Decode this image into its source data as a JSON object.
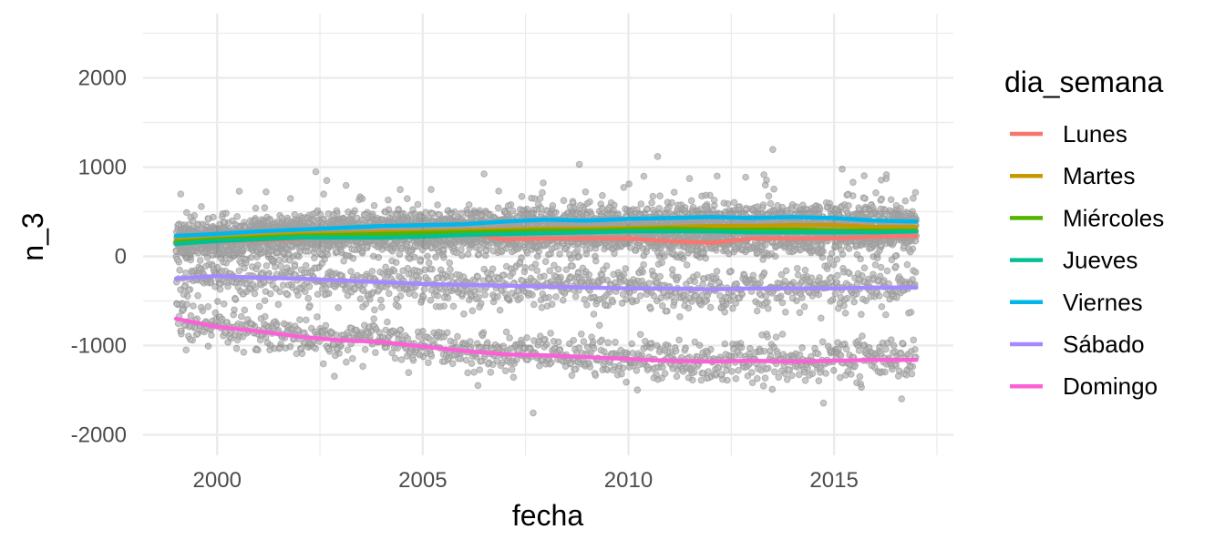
{
  "chart_data": {
    "type": "scatter",
    "xlabel": "fecha",
    "ylabel": "n_3",
    "xlim": [
      1998.2,
      2017.9
    ],
    "ylim": [
      -2230,
      2720
    ],
    "x_ticks": [
      2000,
      2005,
      2010,
      2015
    ],
    "y_ticks": [
      -2000,
      -1000,
      0,
      1000,
      2000
    ],
    "grid": true,
    "legend": {
      "title": "dia_semana",
      "placement": "right",
      "entries": [
        "Lunes",
        "Martes",
        "Miércoles",
        "Jueves",
        "Viernes",
        "Sábado",
        "Domingo"
      ]
    },
    "point_color": "#000000",
    "point_opacity": 0.22,
    "series": [
      {
        "name": "Lunes",
        "color": "#F8766D",
        "x": [
          1999,
          2000,
          2001,
          2002,
          2003,
          2004,
          2005,
          2006,
          2007,
          2008,
          2009,
          2010,
          2011,
          2012,
          2013,
          2014,
          2015,
          2016,
          2017
        ],
        "values": [
          150,
          170,
          180,
          200,
          240,
          280,
          270,
          260,
          190,
          200,
          200,
          200,
          170,
          150,
          200,
          200,
          200,
          220,
          230
        ]
      },
      {
        "name": "Martes",
        "color": "#C49A00",
        "x": [
          1999,
          2000,
          2001,
          2002,
          2003,
          2004,
          2005,
          2006,
          2007,
          2008,
          2009,
          2010,
          2011,
          2012,
          2013,
          2014,
          2015,
          2016,
          2017
        ],
        "values": [
          180,
          200,
          230,
          250,
          260,
          270,
          280,
          290,
          300,
          310,
          310,
          320,
          330,
          340,
          340,
          350,
          350,
          330,
          330
        ]
      },
      {
        "name": "Miércoles",
        "color": "#53B400",
        "x": [
          1999,
          2000,
          2001,
          2002,
          2003,
          2004,
          2005,
          2006,
          2007,
          2008,
          2009,
          2010,
          2011,
          2012,
          2013,
          2014,
          2015,
          2016,
          2017
        ],
        "values": [
          160,
          190,
          210,
          230,
          240,
          250,
          260,
          270,
          280,
          290,
          290,
          300,
          310,
          300,
          300,
          300,
          290,
          290,
          290
        ]
      },
      {
        "name": "Jueves",
        "color": "#00C094",
        "x": [
          1999,
          2000,
          2001,
          2002,
          2003,
          2004,
          2005,
          2006,
          2007,
          2008,
          2009,
          2010,
          2011,
          2012,
          2013,
          2014,
          2015,
          2016,
          2017
        ],
        "values": [
          140,
          170,
          190,
          210,
          210,
          210,
          220,
          240,
          250,
          260,
          270,
          280,
          280,
          280,
          270,
          270,
          270,
          270,
          280
        ]
      },
      {
        "name": "Viernes",
        "color": "#00B6EB",
        "x": [
          1999,
          2000,
          2001,
          2002,
          2003,
          2004,
          2005,
          2006,
          2007,
          2008,
          2009,
          2010,
          2011,
          2012,
          2013,
          2014,
          2015,
          2016,
          2017
        ],
        "values": [
          230,
          250,
          280,
          300,
          320,
          340,
          350,
          360,
          390,
          410,
          400,
          420,
          430,
          440,
          430,
          440,
          430,
          400,
          390
        ]
      },
      {
        "name": "Sábado",
        "color": "#A58AFF",
        "x": [
          1999,
          2000,
          2001,
          2002,
          2003,
          2004,
          2005,
          2006,
          2007,
          2008,
          2009,
          2010,
          2011,
          2012,
          2013,
          2014,
          2015,
          2016,
          2017
        ],
        "values": [
          -250,
          -220,
          -240,
          -250,
          -270,
          -290,
          -310,
          -320,
          -330,
          -340,
          -350,
          -360,
          -360,
          -370,
          -360,
          -360,
          -360,
          -350,
          -350
        ]
      },
      {
        "name": "Domingo",
        "color": "#FB61D7",
        "x": [
          1999,
          2000,
          2001,
          2002,
          2003,
          2004,
          2005,
          2006,
          2007,
          2008,
          2009,
          2010,
          2011,
          2012,
          2013,
          2014,
          2015,
          2016,
          2017
        ],
        "values": [
          -700,
          -790,
          -840,
          -900,
          -940,
          -960,
          -1010,
          -1060,
          -1100,
          -1110,
          -1130,
          -1150,
          -1170,
          -1180,
          -1170,
          -1180,
          -1170,
          -1160,
          -1160
        ]
      }
    ]
  }
}
